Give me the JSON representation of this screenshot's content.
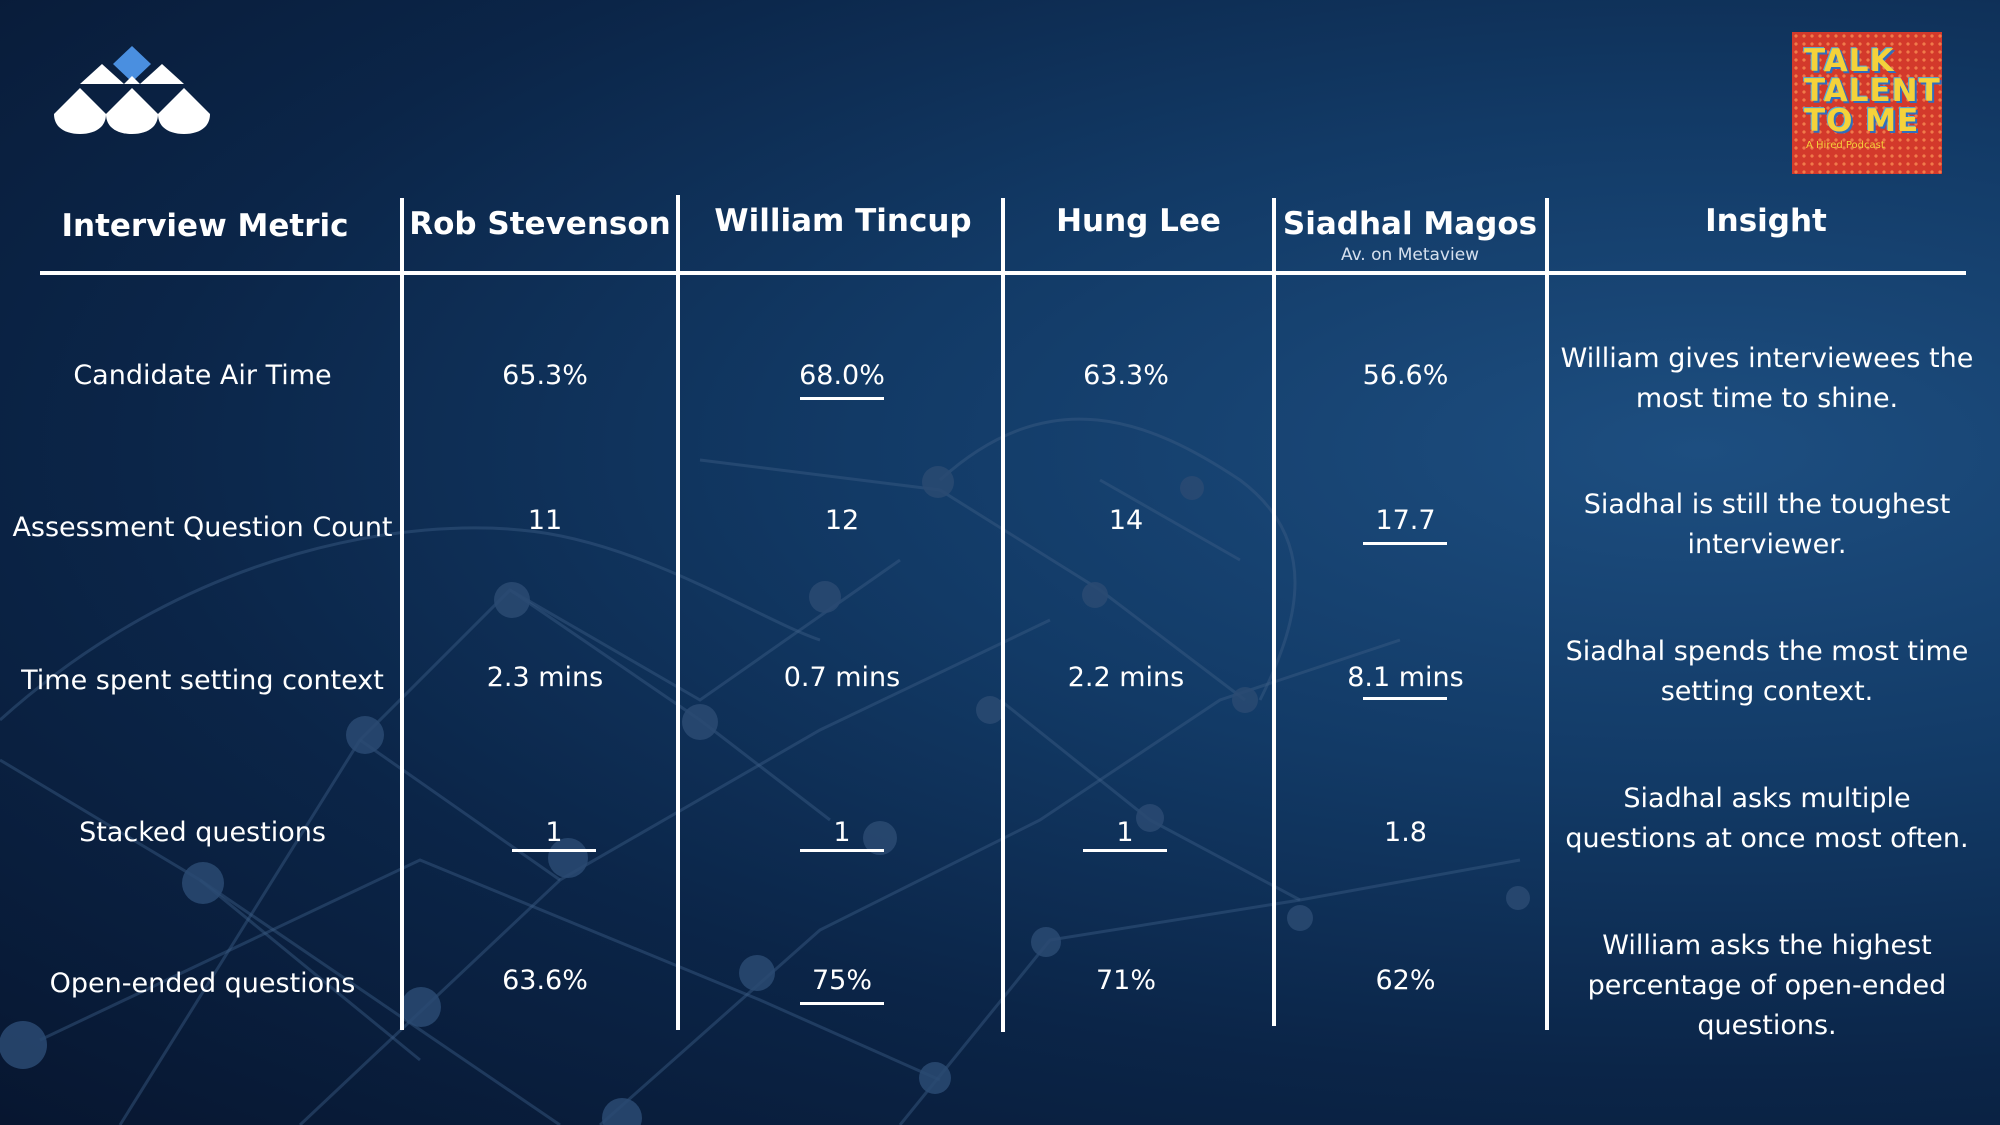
{
  "header": {
    "columns": [
      "Interview Metric",
      "Rob Stevenson",
      "William Tincup",
      "Hung Lee",
      "Siadhal Magos",
      "Insight"
    ],
    "siadhal_subtitle": "Av. on Metaview"
  },
  "podcast_logo": {
    "lines": [
      "TALK",
      "TALENT",
      "TO ME"
    ],
    "subtitle": "A Hired Podcast"
  },
  "rows": [
    {
      "metric": "Candidate Air Time",
      "values": [
        "65.3%",
        "68.0%",
        "63.3%",
        "56.6%"
      ],
      "underlined": [
        false,
        true,
        false,
        false
      ],
      "insight": "William gives interviewees the most time to shine."
    },
    {
      "metric": "Assessment Question Count",
      "values": [
        "11",
        "12",
        "14",
        "17.7"
      ],
      "underlined": [
        false,
        false,
        false,
        true
      ],
      "insight": "Siadhal is still the toughest interviewer."
    },
    {
      "metric": "Time spent setting context",
      "values": [
        "2.3 mins",
        "0.7 mins",
        "2.2 mins",
        "8.1 mins"
      ],
      "underlined": [
        false,
        false,
        false,
        true
      ],
      "insight": "Siadhal spends the most time setting context."
    },
    {
      "metric": "Stacked questions",
      "values": [
        "1",
        "1",
        "1",
        "1.8"
      ],
      "underlined": [
        true,
        true,
        true,
        false
      ],
      "insight": "Siadhal asks multiple questions at once most often."
    },
    {
      "metric": "Open-ended questions",
      "values": [
        "63.6%",
        "75%",
        "71%",
        "62%"
      ],
      "underlined": [
        false,
        true,
        false,
        false
      ],
      "insight": "William asks the highest percentage of open-ended questions."
    }
  ],
  "colors": {
    "background": "#0b2548",
    "accent_blue": "#4a8fe0",
    "podcast_red": "#d3392b",
    "podcast_yellow": "#f5d23a"
  },
  "icons": {
    "brand_logo": "metaview-logo-icon"
  }
}
